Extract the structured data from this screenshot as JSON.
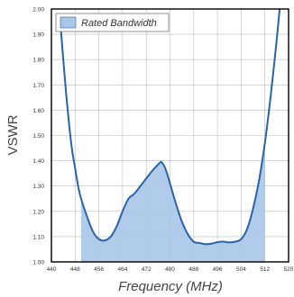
{
  "chart_data": {
    "type": "line",
    "xlabel": "Frequency (MHz)",
    "ylabel": "VSWR",
    "xlim": [
      440,
      520
    ],
    "ylim": [
      1.0,
      2.0
    ],
    "x_ticks": [
      "440",
      "448",
      "456",
      "464",
      "472",
      "480",
      "488",
      "496",
      "504",
      "512",
      "520"
    ],
    "y_ticks": [
      "1.00",
      "1.10",
      "1.20",
      "1.30",
      "1.40",
      "1.50",
      "1.60",
      "1.70",
      "1.80",
      "1.90",
      "2.00"
    ],
    "grid": true,
    "legend": {
      "label": "Rated Bandwidth",
      "position": "top-left"
    },
    "rated_band": {
      "start": 450,
      "end": 512
    },
    "colors": {
      "line": "#2a63a8",
      "fill": "#a9c6e8",
      "grid": "#bbbbbb",
      "axis": "#000000"
    },
    "series": [
      {
        "x": [
          443,
          444,
          445,
          446,
          447,
          448,
          449,
          450,
          452,
          454,
          456,
          458,
          460,
          462,
          464,
          466,
          468,
          470,
          472,
          474,
          476,
          477,
          478,
          479,
          480,
          482,
          484,
          486,
          488,
          490,
          492,
          494,
          496,
          498,
          500,
          502,
          504,
          506,
          508,
          510,
          512,
          514,
          516,
          517
        ],
        "y": [
          1.95,
          1.8,
          1.66,
          1.54,
          1.44,
          1.37,
          1.3,
          1.25,
          1.18,
          1.12,
          1.09,
          1.085,
          1.1,
          1.14,
          1.2,
          1.25,
          1.27,
          1.3,
          1.33,
          1.36,
          1.385,
          1.395,
          1.38,
          1.35,
          1.31,
          1.23,
          1.16,
          1.11,
          1.08,
          1.075,
          1.07,
          1.072,
          1.078,
          1.08,
          1.077,
          1.08,
          1.09,
          1.13,
          1.21,
          1.32,
          1.47,
          1.66,
          1.88,
          2.0
        ]
      }
    ]
  }
}
